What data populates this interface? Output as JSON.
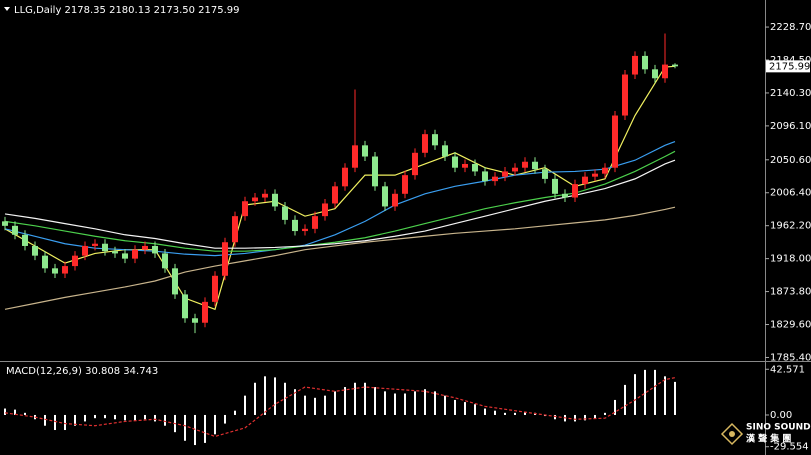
{
  "chart_data": [
    {
      "type": "candlestick",
      "title": "LLG,Daily 2178.35 2180.13 2173.50 2175.99",
      "open": [
        1968,
        1962,
        1950,
        1935,
        1922,
        1905,
        1898,
        1908,
        1922,
        1935,
        1938,
        1928,
        1925,
        1918,
        1930,
        1935,
        1925,
        1905,
        1870,
        1838,
        1832,
        1860,
        1895,
        1940,
        1975,
        1995,
        2000,
        2005,
        1988,
        1970,
        1955,
        1958,
        1975,
        1992,
        2015,
        2040,
        2070,
        2055,
        2015,
        1988,
        2005,
        2030,
        2060,
        2085,
        2070,
        2055,
        2040,
        2045,
        2035,
        2022,
        2028,
        2035,
        2040,
        2048,
        2038,
        2025,
        2005,
        2000,
        2018,
        2028,
        2032,
        2040,
        2110,
        2165,
        2190,
        2172,
        2160,
        2178.35
      ],
      "high": [
        1974,
        1968,
        1956,
        1941,
        1928,
        1911,
        1914,
        1928,
        1941,
        1944,
        1944,
        1934,
        1931,
        1936,
        1941,
        1941,
        1931,
        1911,
        1876,
        1844,
        1866,
        1901,
        1946,
        1981,
        2001,
        2006,
        2011,
        2011,
        1994,
        1976,
        1964,
        1981,
        1998,
        2021,
        2046,
        2145,
        2076,
        2061,
        2021,
        2011,
        2036,
        2066,
        2091,
        2091,
        2076,
        2061,
        2051,
        2051,
        2041,
        2034,
        2041,
        2046,
        2054,
        2054,
        2044,
        2031,
        2011,
        2024,
        2034,
        2038,
        2046,
        2116,
        2171,
        2196,
        2196,
        2178,
        2220,
        2180.13
      ],
      "low": [
        1956,
        1944,
        1929,
        1916,
        1899,
        1892,
        1892,
        1902,
        1916,
        1929,
        1922,
        1919,
        1912,
        1912,
        1924,
        1919,
        1899,
        1864,
        1832,
        1818,
        1826,
        1854,
        1889,
        1934,
        1969,
        1989,
        1994,
        1982,
        1964,
        1949,
        1949,
        1952,
        1969,
        1986,
        2009,
        2034,
        2049,
        2009,
        1982,
        1982,
        1999,
        2024,
        2054,
        2064,
        2049,
        2034,
        2034,
        2029,
        2016,
        2016,
        2022,
        2029,
        2034,
        2032,
        2019,
        1999,
        1994,
        1994,
        2012,
        2022,
        2026,
        2034,
        2104,
        2159,
        2166,
        2154,
        2154,
        2173.5
      ],
      "close": [
        1962,
        1950,
        1935,
        1922,
        1905,
        1898,
        1908,
        1922,
        1935,
        1938,
        1928,
        1925,
        1918,
        1930,
        1935,
        1925,
        1905,
        1870,
        1838,
        1832,
        1860,
        1895,
        1940,
        1975,
        1995,
        2000,
        2005,
        1988,
        1970,
        1955,
        1958,
        1975,
        1992,
        2015,
        2040,
        2070,
        2055,
        2015,
        1988,
        2005,
        2030,
        2060,
        2085,
        2070,
        2055,
        2040,
        2045,
        2035,
        2022,
        2028,
        2035,
        2040,
        2048,
        2038,
        2025,
        2005,
        2000,
        2018,
        2028,
        2032,
        2040,
        2110,
        2165,
        2190,
        2172,
        2160,
        2178.35,
        2175.99
      ],
      "up_color": "#ff2a2a",
      "down_color": "#8ee88e",
      "ylim": [
        1782,
        2265
      ],
      "yticks": [
        {
          "value": 2228.7,
          "label": "2228.70"
        },
        {
          "value": 2184.5,
          "label": "2184.50"
        },
        {
          "value": 2140.3,
          "label": "2140.30"
        },
        {
          "value": 2096.1,
          "label": "2096.10"
        },
        {
          "value": 2050.6,
          "label": "2050.60"
        },
        {
          "value": 2006.4,
          "label": "2006.40"
        },
        {
          "value": 1962.2,
          "label": "1962.20"
        },
        {
          "value": 1918,
          "label": "1918.00"
        },
        {
          "value": 1873.8,
          "label": "1873.80"
        },
        {
          "value": 1829.6,
          "label": "1829.60"
        },
        {
          "value": 1785.4,
          "label": "1785.40"
        }
      ],
      "overlays": [
        {
          "type": "line",
          "color": "#f0f060",
          "x": [
            0,
            3,
            6,
            9,
            12,
            15,
            18,
            21,
            24,
            27,
            30,
            33,
            36,
            39,
            42,
            45,
            48,
            51,
            54,
            57,
            60,
            63,
            66,
            67
          ],
          "values": [
            1958,
            1935,
            1912,
            1925,
            1930,
            1930,
            1865,
            1850,
            1990,
            1995,
            1975,
            1985,
            2030,
            2030,
            2045,
            2060,
            2040,
            2030,
            2040,
            2015,
            2025,
            2110,
            2175,
            2176
          ]
        },
        {
          "type": "line",
          "color": "#3a9ef0",
          "x": [
            0,
            3,
            6,
            9,
            12,
            15,
            18,
            21,
            24,
            27,
            30,
            33,
            36,
            39,
            42,
            45,
            48,
            51,
            54,
            57,
            60,
            63,
            66,
            67
          ],
          "values": [
            1958,
            1948,
            1938,
            1932,
            1930,
            1928,
            1924,
            1922,
            1925,
            1930,
            1936,
            1950,
            1968,
            1990,
            2005,
            2015,
            2022,
            2030,
            2034,
            2035,
            2038,
            2050,
            2070,
            2075
          ]
        },
        {
          "type": "line",
          "color": "#4cd04c",
          "x": [
            0,
            3,
            6,
            9,
            12,
            15,
            18,
            21,
            24,
            27,
            30,
            33,
            36,
            39,
            42,
            45,
            48,
            51,
            54,
            57,
            60,
            63,
            66,
            67
          ],
          "values": [
            1968,
            1962,
            1955,
            1948,
            1942,
            1938,
            1932,
            1928,
            1928,
            1930,
            1935,
            1940,
            1946,
            1955,
            1965,
            1975,
            1985,
            1993,
            2000,
            2006,
            2018,
            2035,
            2055,
            2062
          ]
        },
        {
          "type": "line",
          "color": "#f4f4f4",
          "x": [
            0,
            3,
            6,
            9,
            12,
            15,
            18,
            21,
            24,
            27,
            30,
            33,
            36,
            39,
            42,
            45,
            48,
            51,
            54,
            57,
            60,
            63,
            66,
            67
          ],
          "values": [
            1978,
            1972,
            1965,
            1958,
            1950,
            1945,
            1938,
            1932,
            1932,
            1933,
            1935,
            1938,
            1942,
            1948,
            1955,
            1965,
            1975,
            1985,
            1995,
            2003,
            2012,
            2025,
            2045,
            2050
          ]
        },
        {
          "type": "line",
          "color": "#c8b48c",
          "x": [
            0,
            3,
            6,
            9,
            12,
            15,
            18,
            21,
            24,
            27,
            30,
            33,
            36,
            39,
            42,
            45,
            48,
            51,
            54,
            57,
            60,
            63,
            66,
            67
          ],
          "values": [
            1850,
            1858,
            1866,
            1873,
            1880,
            1888,
            1900,
            1908,
            1915,
            1922,
            1930,
            1935,
            1940,
            1944,
            1948,
            1952,
            1955,
            1958,
            1962,
            1966,
            1970,
            1976,
            1984,
            1987
          ]
        }
      ]
    },
    {
      "type": "macd",
      "title": "MACD(12,26,9) 30.808 34.743",
      "histogram": [
        6,
        5,
        2,
        -4,
        -10,
        -14,
        -14,
        -10,
        -6,
        -3,
        -3,
        -4,
        -5,
        -5,
        -4,
        -6,
        -10,
        -16,
        -24,
        -28,
        -26,
        -18,
        -8,
        4,
        18,
        30,
        36,
        35,
        30,
        24,
        18,
        16,
        18,
        22,
        26,
        30,
        30,
        26,
        22,
        20,
        20,
        22,
        24,
        22,
        18,
        14,
        12,
        10,
        6,
        4,
        2,
        2,
        3,
        2,
        -1,
        -4,
        -6,
        -6,
        -5,
        -3,
        2,
        14,
        28,
        38,
        42,
        42,
        36,
        30.808
      ],
      "histogram_color": "#ffffff",
      "signal": {
        "color": "#e03030",
        "x": [
          0,
          3,
          6,
          9,
          12,
          15,
          18,
          21,
          24,
          27,
          30,
          33,
          36,
          39,
          42,
          45,
          48,
          51,
          54,
          57,
          60,
          63,
          66,
          67
        ],
        "values": [
          2,
          -2,
          -8,
          -10,
          -6,
          -4,
          -10,
          -20,
          -12,
          10,
          26,
          22,
          26,
          24,
          22,
          16,
          8,
          4,
          0,
          -4,
          -3,
          14,
          33,
          34.743
        ]
      },
      "ylim": [
        -35.4,
        48.4
      ],
      "yticks": [
        42.571,
        {
          "value": 0,
          "label": "0.00"
        },
        -29.554
      ]
    }
  ],
  "watermark": {
    "brand": "SINO SOUND",
    "chinese": "漢 聲 集 團"
  }
}
